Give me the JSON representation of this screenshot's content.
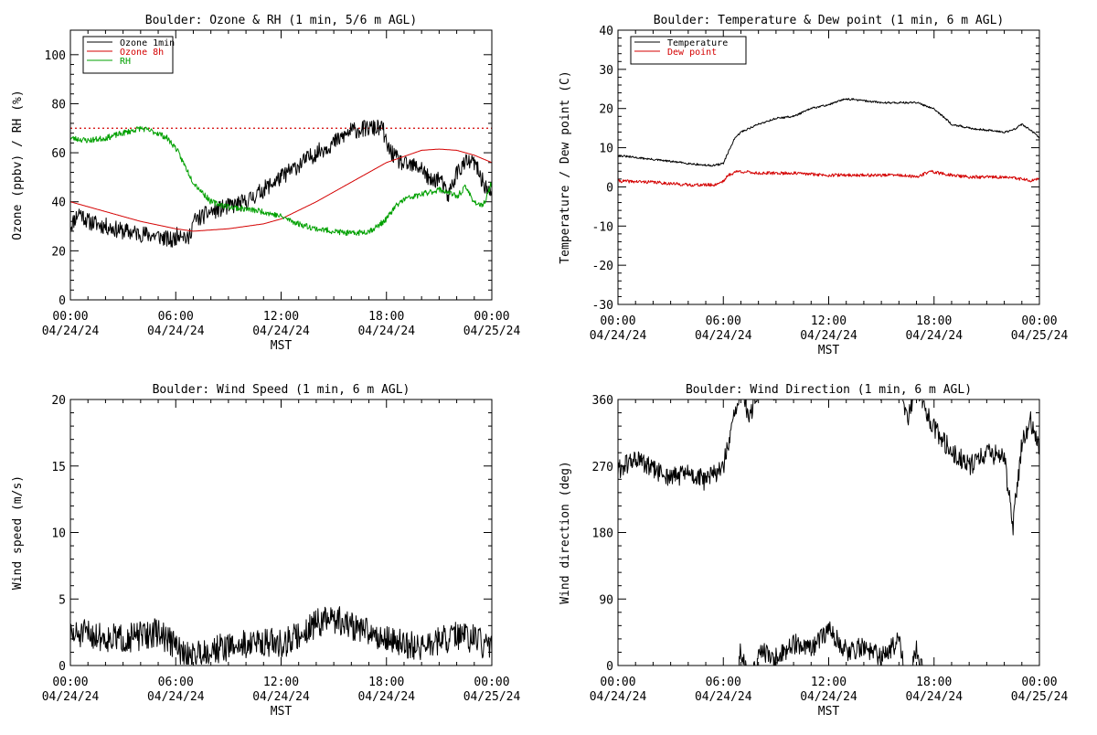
{
  "colors": {
    "black": "#000000",
    "red": "#d40000",
    "green": "#00a000"
  },
  "chart_data": [
    {
      "type": "line",
      "title": "Boulder: Ozone & RH (1 min, 5/6 m AGL)",
      "xlabel": "MST",
      "ylabel": "Ozone (ppbv) / RH (%)",
      "xlim": [
        0,
        24
      ],
      "ylim": [
        0,
        110
      ],
      "yticks": [
        0,
        20,
        40,
        60,
        80,
        100
      ],
      "xticks": [
        {
          "t": 0,
          "time": "00:00",
          "date": "04/24/24"
        },
        {
          "t": 6,
          "time": "06:00",
          "date": "04/24/24"
        },
        {
          "t": 12,
          "time": "12:00",
          "date": "04/24/24"
        },
        {
          "t": 18,
          "time": "18:00",
          "date": "04/24/24"
        },
        {
          "t": 24,
          "time": "00:00",
          "date": "04/25/24"
        }
      ],
      "legend": {
        "position": "top-left",
        "entries": [
          "Ozone 1min",
          "Ozone 8h",
          "RH"
        ]
      },
      "reference_line": {
        "y": 70,
        "style": "dotted",
        "color": "#d40000"
      },
      "series": [
        {
          "name": "Ozone 1min",
          "color": "#000000",
          "noise": 3.5,
          "seed": 11,
          "x": [
            0,
            0.5,
            1,
            2,
            3,
            4,
            5,
            5.8,
            6.3,
            6.7,
            7,
            8,
            9,
            10,
            11,
            12,
            13,
            14,
            15,
            16,
            17,
            17.8,
            18,
            18.5,
            19,
            20,
            20.5,
            21,
            21.5,
            22,
            22.5,
            23,
            23.5,
            24
          ],
          "y": [
            30,
            36,
            32,
            30,
            28,
            27,
            26,
            24,
            28,
            24,
            32,
            36,
            38,
            40,
            45,
            50,
            55,
            60,
            64,
            69,
            70,
            70,
            63,
            58,
            55,
            54,
            48,
            50,
            42,
            52,
            56,
            56,
            48,
            42
          ]
        },
        {
          "name": "Ozone 8h",
          "color": "#d40000",
          "noise": 0,
          "seed": 1,
          "x": [
            0,
            2,
            4,
            6,
            7,
            9,
            11,
            12,
            14,
            16,
            18,
            20,
            21,
            22,
            23,
            24
          ],
          "y": [
            40,
            36,
            32,
            29,
            28,
            29,
            31,
            33,
            40,
            48,
            56,
            61,
            61.5,
            61,
            59,
            56
          ]
        },
        {
          "name": "RH",
          "color": "#00a000",
          "noise": 1.2,
          "seed": 23,
          "x": [
            0,
            1,
            2,
            3,
            4,
            5,
            5.5,
            6,
            6.5,
            7,
            7.5,
            8,
            9,
            10,
            11,
            12,
            13,
            14,
            15,
            16,
            17,
            17.5,
            18,
            18.5,
            19,
            20,
            21,
            21.5,
            22,
            22.5,
            23,
            23.5,
            24
          ],
          "y": [
            66,
            65,
            66,
            68,
            70,
            68,
            66,
            62,
            55,
            48,
            44,
            40,
            38,
            37,
            36,
            34,
            31,
            29,
            28,
            27,
            28,
            30,
            33,
            38,
            41,
            43,
            45,
            44,
            42,
            46,
            40,
            38,
            48
          ]
        }
      ]
    },
    {
      "type": "line",
      "title": "Boulder: Temperature & Dew point (1 min, 6 m AGL)",
      "xlabel": "MST",
      "ylabel": "Temperature / Dew point (C)",
      "xlim": [
        0,
        24
      ],
      "ylim": [
        -30,
        40
      ],
      "yticks": [
        -30,
        -20,
        -10,
        0,
        10,
        20,
        30,
        40
      ],
      "xticks": [
        {
          "t": 0,
          "time": "00:00",
          "date": "04/24/24"
        },
        {
          "t": 6,
          "time": "06:00",
          "date": "04/24/24"
        },
        {
          "t": 12,
          "time": "12:00",
          "date": "04/24/24"
        },
        {
          "t": 18,
          "time": "18:00",
          "date": "04/24/24"
        },
        {
          "t": 24,
          "time": "00:00",
          "date": "04/25/24"
        }
      ],
      "legend": {
        "position": "top-left",
        "entries": [
          "Temperature",
          "Dew point"
        ]
      },
      "series": [
        {
          "name": "Temperature",
          "color": "#000000",
          "noise": 0.25,
          "seed": 31,
          "x": [
            0,
            1,
            2,
            3,
            4,
            5,
            5.5,
            6,
            6.3,
            6.6,
            7,
            8,
            9,
            10,
            10.5,
            11,
            12,
            13,
            14,
            15,
            16,
            17,
            18,
            18.5,
            19,
            20,
            21,
            22,
            22.5,
            23,
            23.5,
            24
          ],
          "y": [
            8,
            7.5,
            7,
            6.5,
            6,
            5.5,
            5.5,
            6,
            9,
            12,
            14,
            16,
            17.5,
            18,
            19,
            20,
            21,
            22.5,
            22,
            21.5,
            21.5,
            21.5,
            20,
            18,
            16,
            15,
            14.5,
            14,
            14.5,
            16,
            14.5,
            12.5
          ]
        },
        {
          "name": "Dew point",
          "color": "#d40000",
          "noise": 0.4,
          "seed": 41,
          "x": [
            0,
            2,
            4,
            5.5,
            6,
            6.3,
            6.8,
            8,
            10,
            12,
            14,
            16,
            17,
            17.8,
            18.3,
            19,
            20,
            21,
            22,
            23,
            23.5,
            24
          ],
          "y": [
            1.5,
            1.2,
            0.5,
            0.5,
            1.5,
            3,
            4,
            3.5,
            3.5,
            3,
            3,
            3,
            2.5,
            4,
            3.5,
            3,
            2.5,
            2.5,
            2.5,
            2,
            1.5,
            2
          ]
        }
      ]
    },
    {
      "type": "line",
      "title": "Boulder: Wind Speed (1 min, 6 m AGL)",
      "xlabel": "MST",
      "ylabel": "Wind speed (m/s)",
      "xlim": [
        0,
        24
      ],
      "ylim": [
        0,
        20
      ],
      "yticks": [
        0,
        5,
        10,
        15,
        20
      ],
      "xticks": [
        {
          "t": 0,
          "time": "00:00",
          "date": "04/24/24"
        },
        {
          "t": 6,
          "time": "06:00",
          "date": "04/24/24"
        },
        {
          "t": 12,
          "time": "12:00",
          "date": "04/24/24"
        },
        {
          "t": 18,
          "time": "18:00",
          "date": "04/24/24"
        },
        {
          "t": 24,
          "time": "00:00",
          "date": "04/25/24"
        }
      ],
      "series": [
        {
          "color": "#000000",
          "noise": 1.1,
          "seed": 51,
          "x": [
            0,
            1,
            2,
            3,
            4,
            5,
            6,
            6.5,
            7,
            8,
            9,
            10,
            11,
            12,
            13,
            14,
            15,
            16,
            17,
            18,
            19,
            20,
            21,
            22,
            23,
            24
          ],
          "y": [
            2.2,
            2.4,
            2.1,
            2,
            2.2,
            2.5,
            1.5,
            0.6,
            0.8,
            1.2,
            1.4,
            1.6,
            1.8,
            1.6,
            2.2,
            3.2,
            3.5,
            3,
            2.5,
            2,
            1.6,
            1.4,
            1.8,
            2.2,
            2,
            1.2
          ]
        }
      ]
    },
    {
      "type": "line",
      "title": "Boulder: Wind Direction (1 min, 6 m AGL)",
      "xlabel": "MST",
      "ylabel": "Wind direction (deg)",
      "xlim": [
        0,
        24
      ],
      "ylim": [
        0,
        360
      ],
      "yticks": [
        0,
        90,
        180,
        270,
        360
      ],
      "xticks": [
        {
          "t": 0,
          "time": "00:00",
          "date": "04/24/24"
        },
        {
          "t": 6,
          "time": "06:00",
          "date": "04/24/24"
        },
        {
          "t": 12,
          "time": "12:00",
          "date": "04/24/24"
        },
        {
          "t": 18,
          "time": "18:00",
          "date": "04/24/24"
        },
        {
          "t": 24,
          "time": "00:00",
          "date": "04/25/24"
        }
      ],
      "series": [
        {
          "color": "#000000",
          "noise": 14,
          "seed": 61,
          "wrap": true,
          "x": [
            0,
            1,
            2,
            3,
            4,
            5,
            6,
            6.5,
            7,
            7.5,
            8,
            9,
            10,
            11,
            12,
            13,
            14,
            15,
            16,
            16.5,
            17,
            17.5,
            18,
            19,
            20,
            21,
            22,
            22.5,
            23,
            23.5,
            24
          ],
          "y": [
            265,
            280,
            265,
            255,
            260,
            250,
            270,
            320,
            380,
            330,
            380,
            370,
            390,
            380,
            410,
            380,
            385,
            370,
            395,
            330,
            380,
            350,
            320,
            290,
            270,
            290,
            280,
            190,
            300,
            330,
            290
          ]
        }
      ]
    }
  ]
}
